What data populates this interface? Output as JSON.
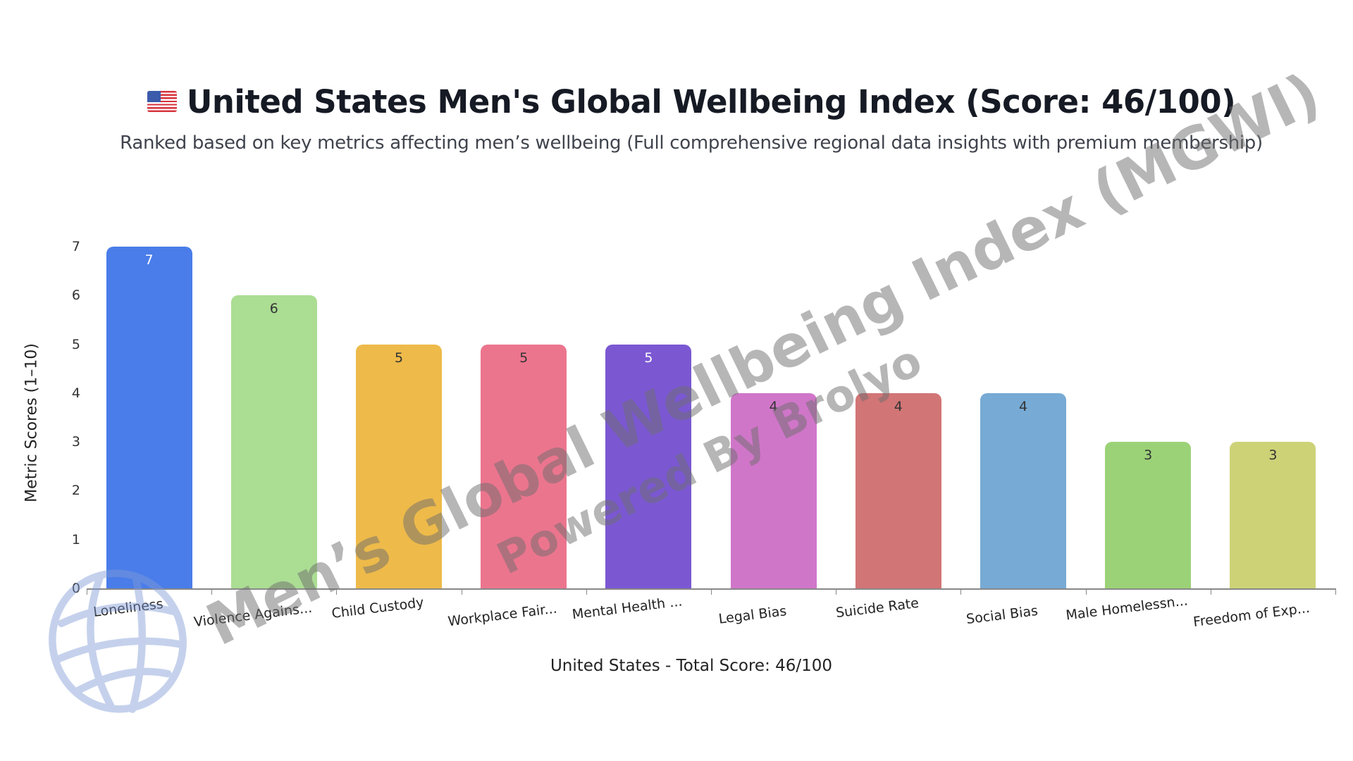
{
  "header": {
    "flag": "US flag emoji",
    "title": "United States Men's Global Wellbeing Index (Score: 46/100)",
    "subtitle": "Ranked based on key metrics affecting men’s wellbeing (Full comprehensive regional data insights with premium membership)"
  },
  "watermark": {
    "main": "Men’s Global Wellbeing Index (MGWI)",
    "sub": "Powered By Brolyo",
    "logo": "globe-icon"
  },
  "chart_data": {
    "type": "bar",
    "title": "United States Men's Global Wellbeing Index (Score: 46/100)",
    "subtitle": "Ranked based on key metrics affecting men’s wellbeing (Full comprehensive regional data insights with premium membership)",
    "xlabel": "United States - Total Score: 46/100",
    "ylabel": "Metric Scores (1–10)",
    "ylim": [
      0,
      7
    ],
    "yticks": [
      "0",
      "1",
      "2",
      "3",
      "4",
      "5",
      "6",
      "7"
    ],
    "grid": false,
    "legend": "none",
    "categories": [
      "Loneliness",
      "Violence Agains...",
      "Child Custody",
      "Workplace Fair...",
      "Mental Health ...",
      "Legal Bias",
      "Suicide Rate",
      "Social Bias",
      "Male Homelessn...",
      "Freedom of Exp..."
    ],
    "values": [
      7,
      6,
      5,
      5,
      5,
      4,
      4,
      4,
      3,
      3
    ],
    "value_labels": [
      "7",
      "6",
      "5",
      "5",
      "5",
      "4",
      "4",
      "4",
      "3",
      "3"
    ],
    "colors": [
      "#4a7de9",
      "#abdd93",
      "#eeba4a",
      "#ec758e",
      "#7b58d2",
      "#d076c9",
      "#d27576",
      "#77aad4",
      "#9bd277",
      "#cdd277"
    ],
    "label_colors": [
      "#ffffff",
      "#333333",
      "#333333",
      "#333333",
      "#ffffff",
      "#333333",
      "#333333",
      "#333333",
      "#333333",
      "#333333"
    ]
  }
}
